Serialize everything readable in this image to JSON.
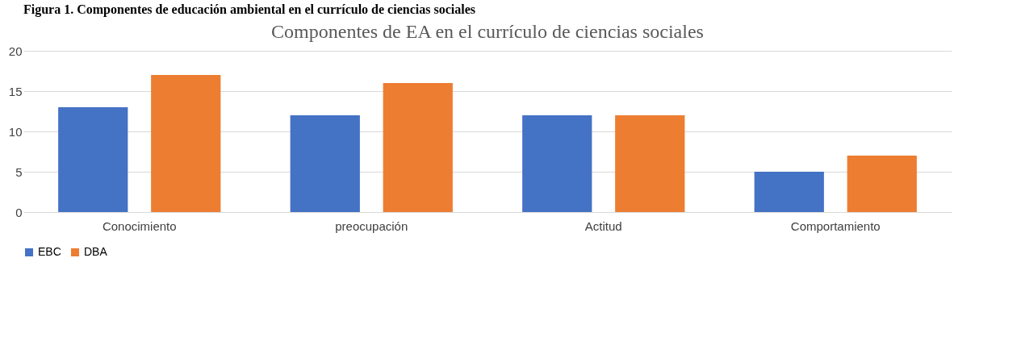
{
  "chart_data": {
    "type": "bar",
    "title": "Componentes de EA en el currículo de ciencias sociales",
    "annotations": [
      "Figura 1. Componentes de educación ambiental en el currículo de ciencias sociales"
    ],
    "categories": [
      "Conocimiento",
      "preocupación",
      "Actitud",
      "Comportamiento"
    ],
    "series": [
      {
        "name": "EBC",
        "color": "#4472c4",
        "values": [
          13,
          12,
          12,
          5
        ]
      },
      {
        "name": "DBA",
        "color": "#ed7d31",
        "values": [
          17,
          16,
          12,
          7
        ]
      }
    ],
    "ylim": [
      0,
      20
    ],
    "yticks": [
      0,
      5,
      10,
      15,
      20
    ],
    "grid": "y",
    "legend": "bottom"
  }
}
